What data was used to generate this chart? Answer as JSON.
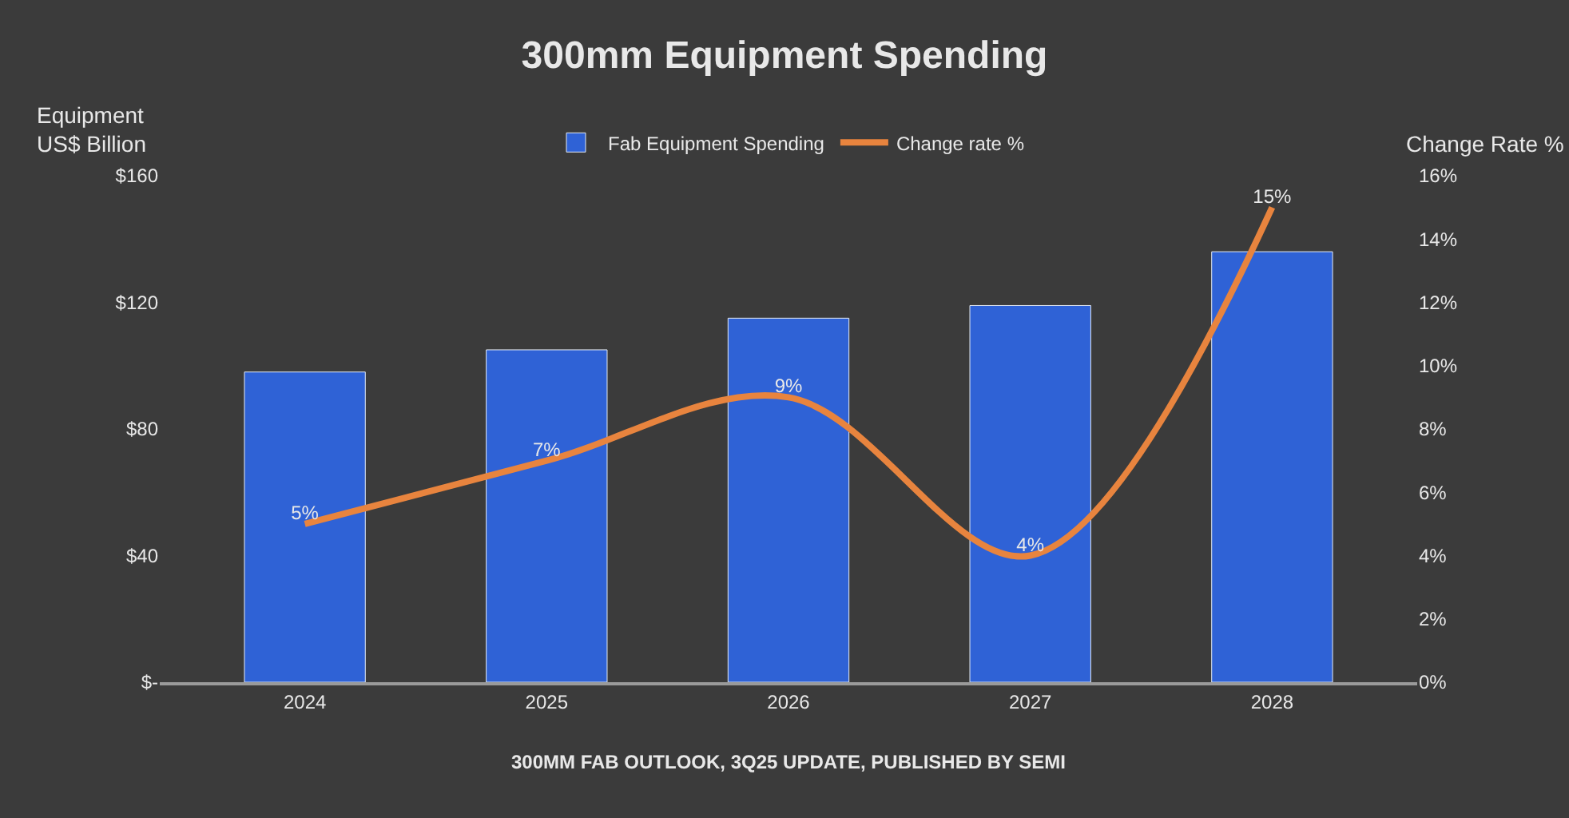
{
  "chart_data": {
    "type": "bar",
    "title": "300mm Equipment Spending",
    "categories": [
      "2024",
      "2025",
      "2026",
      "2027",
      "2028"
    ],
    "series": [
      {
        "name": "Fab Equipment Spending",
        "color": "#2f62d6",
        "values": [
          98,
          105,
          115,
          119,
          136
        ]
      },
      {
        "name": "Change rate %",
        "type": "line",
        "axis": "y2",
        "color": "#e8843e",
        "values": [
          5,
          7,
          9,
          4,
          15
        ],
        "value_labels": [
          "5%",
          "7%",
          "9%",
          "4%",
          "15%"
        ],
        "line_style": "solid",
        "marker": "none"
      }
    ],
    "ylabel": "Equipment\nUS$ Billion",
    "y2label": "Change Rate %",
    "ylim": [
      0,
      160
    ],
    "yticks": [
      {
        "value": 0,
        "label": "$-"
      },
      {
        "value": 40,
        "label": "$40"
      },
      {
        "value": 80,
        "label": "$80"
      },
      {
        "value": 120,
        "label": "$120"
      },
      {
        "value": 160,
        "label": "$160"
      }
    ],
    "y2lim": [
      0,
      16
    ],
    "y2ticks": [
      {
        "value": 0,
        "label": "0%"
      },
      {
        "value": 2,
        "label": "2%"
      },
      {
        "value": 4,
        "label": "4%"
      },
      {
        "value": 6,
        "label": "6%"
      },
      {
        "value": 8,
        "label": "8%"
      },
      {
        "value": 10,
        "label": "10%"
      },
      {
        "value": 12,
        "label": "12%"
      },
      {
        "value": 14,
        "label": "14%"
      },
      {
        "value": 16,
        "label": "16%"
      }
    ],
    "annotations": [
      "300MM FAB OUTLOOK, 3Q25 UPDATE, PUBLISHED BY SEMI"
    ],
    "legend": "top",
    "grid": false
  }
}
